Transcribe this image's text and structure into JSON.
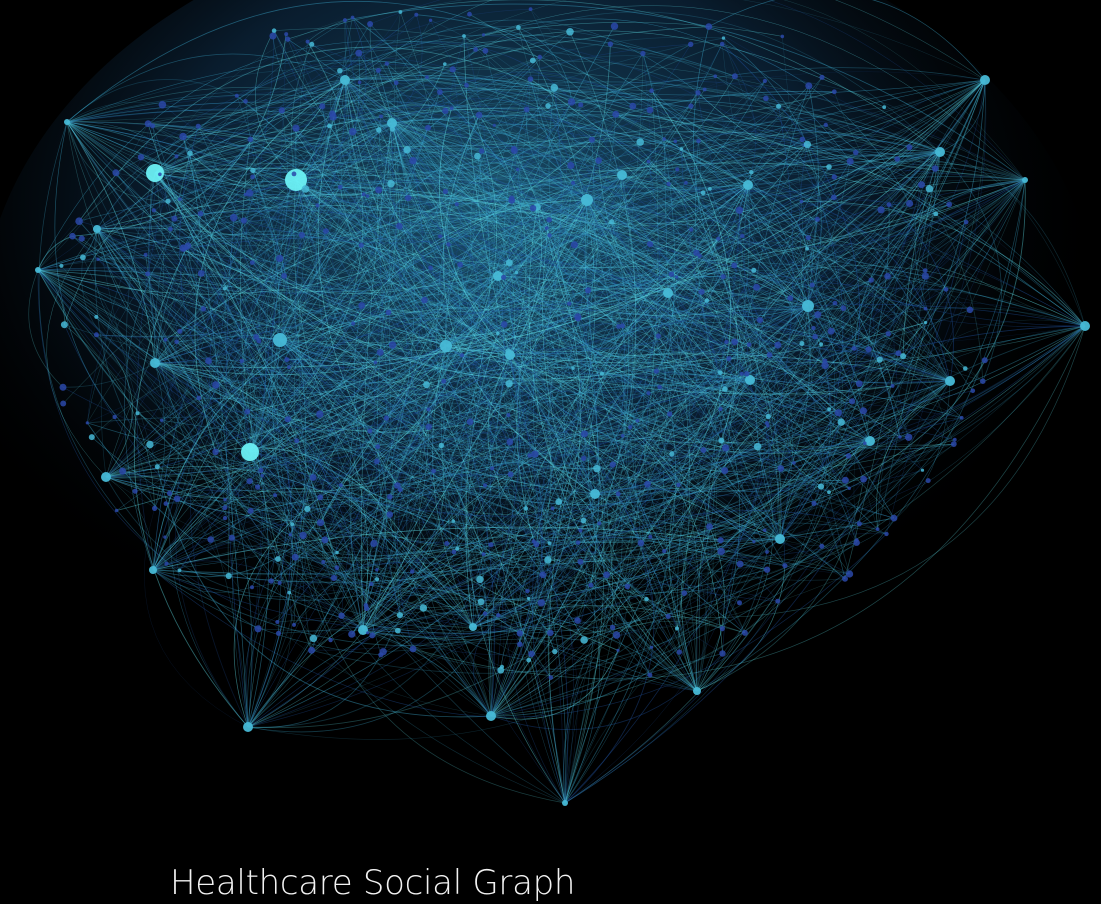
{
  "caption": "Healthcare Social Graph",
  "colors": {
    "background": "#000000",
    "edge_light": "#5fe0e8",
    "edge_mid": "#3aa6c9",
    "edge_dark": "#1f4f9a",
    "node_hub": "#6cf0f4",
    "node_mid": "#47b9d6",
    "node_minor": "#2a48a8",
    "caption_text": "#f2f2f2"
  }
}
